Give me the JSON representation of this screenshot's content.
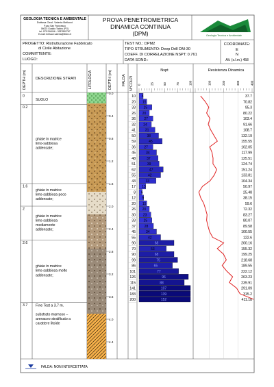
{
  "company": {
    "name": "GEOLOGIA TECNICA E AMBIENTALE",
    "person": "Dottssa Geol. Valeria Bellucci",
    "address1": "P.zza San Francesco",
    "address2": "06023 Gualdo Tadino (PG)",
    "phone": "tel: 075 916046 - 3287890767",
    "email": "E-mail: bellucci.valeria@libero.it",
    "logo_caption": "Geologia Tecnica e Ambientale"
  },
  "title": {
    "line1": "PROVA PENETROMETRICA",
    "line2": "DINAMICA CONTINUA",
    "line3": "(DPM)"
  },
  "info": {
    "progetto": "PROGETTO: Ristrutturazione Fabbricato",
    "progetto2": "di Civile Abitazione",
    "committente": "COMMITTENTE:",
    "luogo": "LUOGO:",
    "test_no": "TEST NO.: DPM2",
    "strumento": "TIPO STRUMENTO: Deep Drill DM-30",
    "coeff": "COEFF. DI CORRELAZIONE NSPT: 0.761",
    "data": "DATA SOND.:",
    "coord_title": "COORDINATE:",
    "coord_e": "E",
    "coord_n": "N",
    "alt": "Alt. (s.l.m.) 458"
  },
  "headers": {
    "depth": "DEPTH (m)",
    "descrizione": "DESCRIZIONE STRATI",
    "litologia": "LITOLOGIA",
    "depth2": "DEPTH (m)",
    "falda": "FALDA",
    "ncolpi": "N°COLPI",
    "nspt": "Nspt",
    "nspt_ticks": [
      "0",
      "25",
      "50",
      "75",
      "100"
    ],
    "res": "Resistenza Dinamica",
    "res_ticks": [
      "100",
      "200",
      "300",
      "400"
    ]
  },
  "strata": [
    {
      "depth": "0",
      "desc": [
        "SUOLO"
      ]
    },
    {
      "depth": "0.2",
      "desc": [
        "ghiaie in matrice",
        "limo-sabbiosa",
        "addensate;"
      ]
    },
    {
      "depth": "1.6",
      "desc": [
        "ghiaie in matrice",
        "limo-sabbiosa poco",
        "addensate;"
      ]
    },
    {
      "depth": "2",
      "desc": [
        "ghiaie in matrice",
        "limo-sabbiosa",
        "mediamente",
        "addensate;"
      ]
    },
    {
      "depth": "2.6",
      "desc": [
        "ghiaie in matrice",
        "limo-sabbiosa molto",
        "addensate;"
      ]
    },
    {
      "depth": "3.7",
      "desc": [
        "Fine Test a 3.7 m.",
        "",
        "substrato marnoso –",
        "arenaceo stratificato a",
        "carattere litoide"
      ]
    }
  ],
  "depth_ticks": [
    "0.0",
    "0.4",
    "0.8",
    "1.2",
    "1.6",
    "2.0",
    "2.4",
    "2.8",
    "3.2",
    "3.6",
    "4.0",
    "4.4"
  ],
  "chart_data": {
    "type": "bar",
    "x_label": "Nspt",
    "x_range": [
      0,
      100
    ],
    "depth_step_m": 0.1,
    "n_colpi": [
      10,
      20,
      33,
      26,
      36,
      32,
      41,
      50,
      59,
      36,
      45,
      48,
      51,
      62,
      55,
      43,
      17,
      8,
      12,
      20,
      26,
      30,
      33,
      37,
      45,
      55,
      90,
      70,
      90,
      99,
      86,
      101,
      126,
      115,
      141,
      183,
      200
    ],
    "nspt": [
      8,
      15,
      25,
      20,
      27,
      24,
      31,
      38,
      45,
      27,
      34,
      37,
      39,
      47,
      42,
      33,
      13,
      6,
      9,
      15,
      20,
      23,
      25,
      28,
      34,
      42,
      68,
      53,
      68,
      75,
      65,
      77,
      96,
      88,
      107,
      139,
      152
    ],
    "resistance": [
      37.7,
      70.82,
      95.3,
      80.22,
      103.4,
      91.66,
      108.7,
      132.19,
      155.55,
      102.05,
      117.99,
      125.51,
      124.74,
      151.24,
      133.81,
      104.34,
      50.97,
      25.48,
      38.15,
      59.6,
      72.32,
      83.27,
      80.07,
      89.58,
      100.55,
      122.6,
      200.16,
      155.32,
      199.25,
      218.68,
      189.55,
      222.12,
      263.23,
      239.91,
      291.09,
      315.2,
      411.18
    ],
    "resistance_range": [
      0,
      400
    ]
  },
  "footer": {
    "falda": "FALDA: NON INTERCETTATA"
  },
  "colors": {
    "frame": "#555555",
    "bar_light": "#3333ee",
    "bar_dark": "#0a0a7a",
    "curve": "#e02020",
    "soil": "#8fd68f"
  }
}
